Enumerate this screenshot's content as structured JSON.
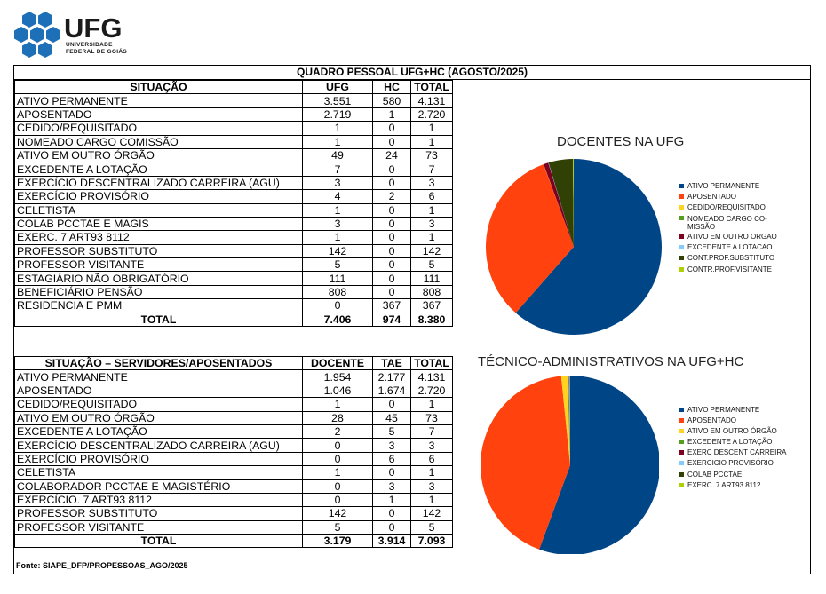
{
  "logo": {
    "word": "UFG",
    "line1": "UNIVERSIDADE",
    "line2": "FEDERAL DE GOIÁS"
  },
  "title": "QUADRO PESSOAL UFG+HC (AGOSTO/2025)",
  "table1": {
    "headers": [
      "SITUAÇÃO",
      "UFG",
      "HC",
      "TOTAL"
    ],
    "rows": [
      [
        "ATIVO PERMANENTE",
        "3.551",
        "580",
        "4.131"
      ],
      [
        "APOSENTADO",
        "2.719",
        "1",
        "2.720"
      ],
      [
        "CEDIDO/REQUISITADO",
        "1",
        "0",
        "1"
      ],
      [
        "NOMEADO CARGO COMISSÃO",
        "1",
        "0",
        "1"
      ],
      [
        "ATIVO EM OUTRO ÓRGÃO",
        "49",
        "24",
        "73"
      ],
      [
        "EXCEDENTE A LOTAÇÃO",
        "7",
        "0",
        "7"
      ],
      [
        "EXERCÍCIO DESCENTRALIZADO CARREIRA (AGU)",
        "3",
        "0",
        "3"
      ],
      [
        "EXERCÍCIO PROVISÓRIO",
        "4",
        "2",
        "6"
      ],
      [
        "CELETISTA",
        "1",
        "0",
        "1"
      ],
      [
        "COLAB PCCTAE E MAGIS",
        "3",
        "0",
        "3"
      ],
      [
        "EXERC. 7  ART93 8112",
        "1",
        "0",
        "1"
      ],
      [
        "PROFESSOR SUBSTITUTO",
        "142",
        "0",
        "142"
      ],
      [
        "PROFESSOR VISITANTE",
        "5",
        "0",
        "5"
      ],
      [
        "ESTAGIÁRIO NÃO OBRIGATÓRIO",
        "111",
        "0",
        "111"
      ],
      [
        "BENEFICIÁRIO PENSÃO",
        "808",
        "0",
        "808"
      ],
      [
        "RESIDENCIA E PMM",
        "0",
        "367",
        "367"
      ]
    ],
    "total": [
      "TOTAL",
      "7.406",
      "974",
      "8.380"
    ]
  },
  "table2": {
    "headers": [
      "SITUAÇÃO – SERVIDORES/APOSENTADOS",
      "DOCENTE",
      "TAE",
      "TOTAL"
    ],
    "rows": [
      [
        "ATIVO PERMANENTE",
        "1.954",
        "2.177",
        "4.131"
      ],
      [
        "APOSENTADO",
        "1.046",
        "1.674",
        "2.720"
      ],
      [
        "CEDIDO/REQUISITADO",
        "1",
        "0",
        "1"
      ],
      [
        "ATIVO EM OUTRO ÓRGÃO",
        "28",
        "45",
        "73"
      ],
      [
        "EXCEDENTE A LOTAÇÃO",
        "2",
        "5",
        "7"
      ],
      [
        "EXERCÍCIO DESCENTRALIZADO CARREIRA (AGU)",
        "0",
        "3",
        "3"
      ],
      [
        "EXERCÍCIO PROVISÓRIO",
        "0",
        "6",
        "6"
      ],
      [
        "CELETISTA",
        "1",
        "0",
        "1"
      ],
      [
        "COLABORADOR PCCTAE E MAGISTÉRIO",
        "0",
        "3",
        "3"
      ],
      [
        "EXERCÍCIO. 7  ART93 8112",
        "0",
        "1",
        "1"
      ],
      [
        "PROFESSOR SUBSTITUTO",
        "142",
        "0",
        "142"
      ],
      [
        "PROFESSOR VISITANTE",
        "5",
        "0",
        "5"
      ]
    ],
    "total": [
      "TOTAL",
      "3.179",
      "3.914",
      "7.093"
    ]
  },
  "source": "Fonte: SIAPE_DFP/PROPESSOAS_AGO/2025",
  "chart_data": [
    {
      "type": "pie",
      "title": "DOCENTES NA UFG",
      "labels": [
        "ATIVO PERMANENTE",
        "APOSENTADO",
        "CEDIDO/REQUISITADO",
        "NOMEADO CARGO CO-\nMISSÃO",
        "ATIVO EM OUTRO ORGAO",
        "EXCEDENTE A LOTACAO",
        "CONT.PROF.SUBSTITUTO",
        "CONTR.PROF.VISITANTE"
      ],
      "values": [
        1954,
        1046,
        1,
        0,
        28,
        2,
        142,
        5
      ],
      "colors": [
        "#004586",
        "#ff420e",
        "#ffd320",
        "#579d1c",
        "#7e0021",
        "#83caff",
        "#314004",
        "#aecf00"
      ],
      "legend_position": "right"
    },
    {
      "type": "pie",
      "title": "TÉCNICO-ADMINISTRATIVOS NA UFG+HC",
      "labels": [
        "ATIVO PERMANENTE",
        "APOSENTADO",
        "ATIVO EM OUTRO ÓRGÃO",
        "EXCEDENTE A LOTAÇÃO",
        "EXERC DESCENT CARREIRA",
        "EXERCICIO PROVISÓRIO",
        "COLAB PCCTAE",
        "EXERC. 7  ART93 8112"
      ],
      "values": [
        2177,
        1674,
        45,
        5,
        3,
        6,
        3,
        1
      ],
      "colors": [
        "#004586",
        "#ff420e",
        "#ffd320",
        "#579d1c",
        "#7e0021",
        "#83caff",
        "#314004",
        "#aecf00"
      ],
      "legend_position": "right"
    }
  ]
}
